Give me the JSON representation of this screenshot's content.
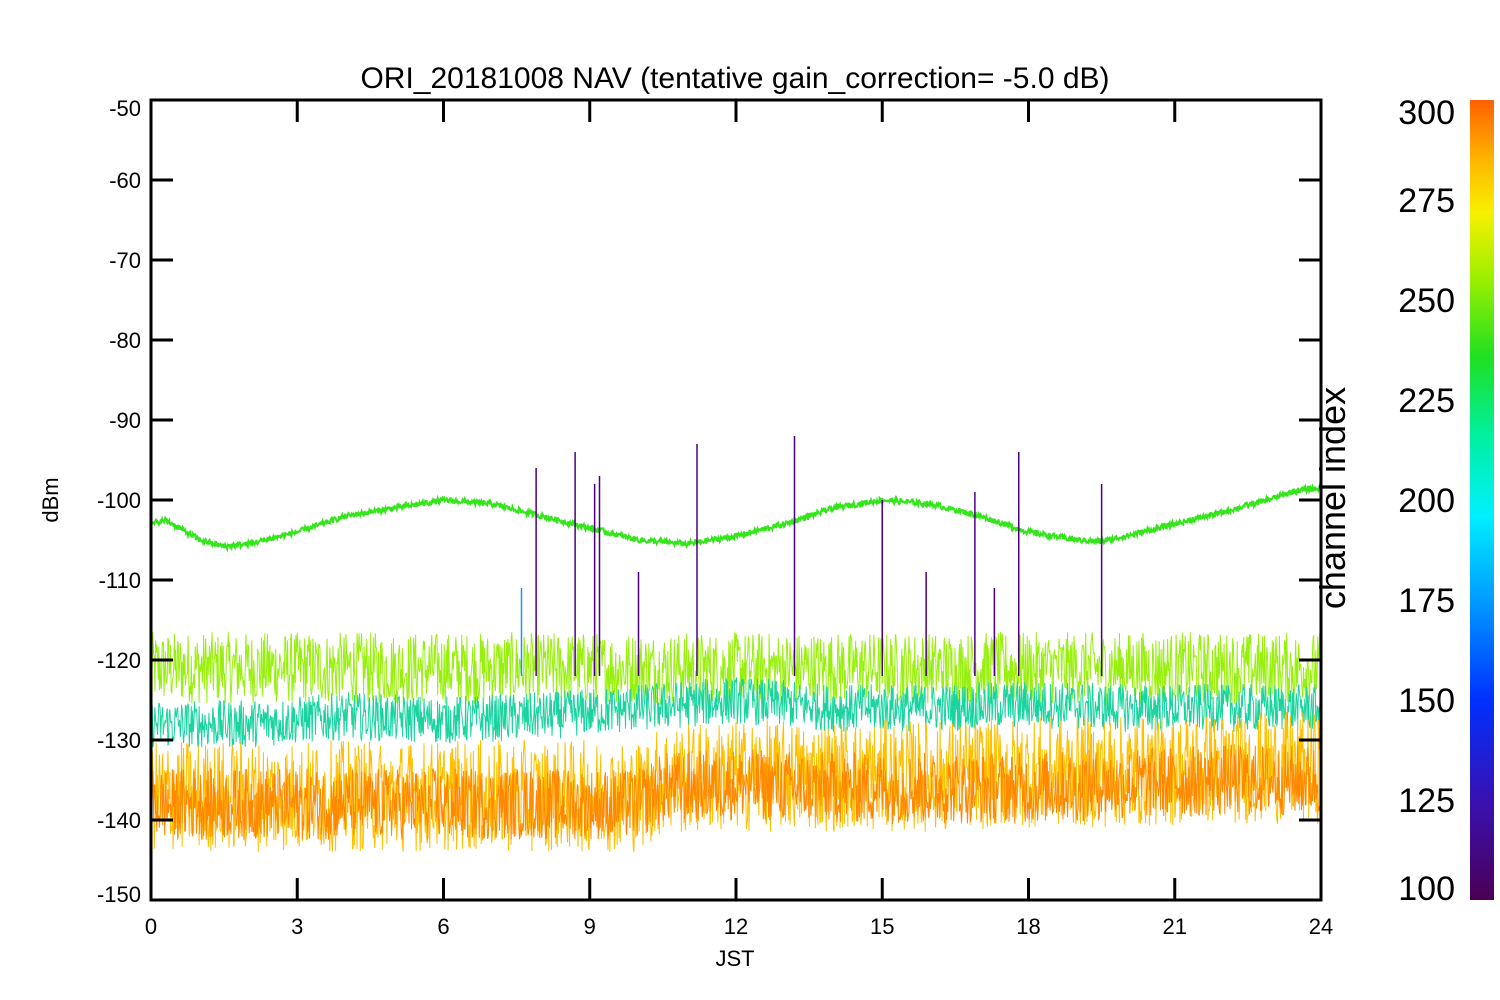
{
  "chart_data": {
    "type": "line",
    "title": "ORI_20181008 NAV (tentative gain_correction= -5.0 dB)",
    "xlabel": "JST",
    "ylabel": "dBm",
    "xlim": [
      0,
      24
    ],
    "ylim": [
      -150,
      -50
    ],
    "x_ticks": [
      "0",
      "3",
      "6",
      "9",
      "12",
      "15",
      "18",
      "21",
      "24"
    ],
    "y_ticks": [
      "-50",
      "-60",
      "-70",
      "-80",
      "-90",
      "-100",
      "-110",
      "-120",
      "-130",
      "-140",
      "-150"
    ],
    "colorbar": {
      "label": "channel index",
      "range": [
        100,
        300
      ],
      "ticks": [
        "300",
        "275",
        "250",
        "225",
        "200",
        "175",
        "150",
        "125",
        "100"
      ],
      "colormap": "rainbow"
    },
    "series": [
      {
        "channel": 240,
        "color": "#33e51a",
        "x": [
          0,
          0.3,
          1,
          1.5,
          2,
          3,
          4,
          5,
          6,
          7,
          8,
          9,
          10,
          11,
          12,
          13,
          14,
          15,
          16,
          17,
          18,
          19,
          19.5,
          20,
          21,
          22,
          23,
          23.5,
          24
        ],
        "y": [
          -103,
          -102.5,
          -105,
          -105.8,
          -105.5,
          -104,
          -102,
          -101,
          -100,
          -100.5,
          -102,
          -103.5,
          -105,
          -105.5,
          -104.5,
          -103,
          -101,
          -100,
          -100.5,
          -102,
          -104,
          -105,
          -105.2,
          -104.5,
          -103,
          -101.5,
          -99.8,
          -98.8,
          -98.5
        ]
      },
      {
        "channel": 265,
        "color": "#99f00f",
        "x": [
          0,
          2,
          4,
          6,
          8,
          10,
          12,
          14,
          16,
          18,
          20,
          22,
          24
        ],
        "y": [
          -121,
          -121,
          -121,
          -121,
          -121,
          -121,
          -121,
          -121,
          -121,
          -121,
          -121,
          -121,
          -121
        ],
        "band": 4.5
      },
      {
        "channel": 180,
        "color": "#1ad4a0",
        "x": [
          0,
          2,
          4,
          6,
          8,
          10,
          12,
          14,
          16,
          18,
          20,
          22,
          24
        ],
        "y": [
          -128,
          -128,
          -127,
          -127.5,
          -127,
          -126,
          -125,
          -126,
          -126,
          -125.5,
          -126,
          -126,
          -126
        ],
        "band": 3
      },
      {
        "channel": 285,
        "color": "#ffbf00",
        "x": [
          0,
          2,
          4,
          6,
          8,
          10,
          10.5,
          12,
          14,
          16,
          18,
          20,
          22,
          24
        ],
        "y": [
          -137,
          -137,
          -137,
          -137,
          -137,
          -137,
          -135,
          -134.5,
          -134.5,
          -134.5,
          -134,
          -134,
          -133.5,
          -133.5
        ],
        "band": 7
      },
      {
        "channel": 300,
        "color": "#ff8800",
        "x": [
          0,
          2,
          4,
          6,
          8,
          10,
          10.5,
          12,
          14,
          16,
          18,
          20,
          22,
          24
        ],
        "y": [
          -138,
          -138,
          -138,
          -138,
          -138,
          -138,
          -136,
          -135.5,
          -136,
          -136,
          -136,
          -135.5,
          -135,
          -135
        ],
        "band": 4.5
      }
    ],
    "spikes": [
      {
        "x": 7.9,
        "top": -96,
        "color": "#4b0082"
      },
      {
        "x": 8.7,
        "top": -94,
        "color": "#4b0082"
      },
      {
        "x": 9.2,
        "top": -97,
        "color": "#4b0082"
      },
      {
        "x": 11.2,
        "top": -93,
        "color": "#4b0082"
      },
      {
        "x": 13.2,
        "top": -92,
        "color": "#4b0082"
      },
      {
        "x": 15.0,
        "top": -100,
        "color": "#4b0082"
      },
      {
        "x": 16.9,
        "top": -99,
        "color": "#4b0082"
      },
      {
        "x": 17.8,
        "top": -94,
        "color": "#4b0082"
      },
      {
        "x": 19.5,
        "top": -98,
        "color": "#4b0082"
      },
      {
        "x": 7.6,
        "top": -111,
        "color": "#1e90ff"
      },
      {
        "x": 9.1,
        "top": -98,
        "color": "#4b0082"
      },
      {
        "x": 10.0,
        "top": -109,
        "color": "#4b0082"
      },
      {
        "x": 15.9,
        "top": -109,
        "color": "#4b0082"
      },
      {
        "x": 17.3,
        "top": -111,
        "color": "#4b0082"
      }
    ]
  }
}
